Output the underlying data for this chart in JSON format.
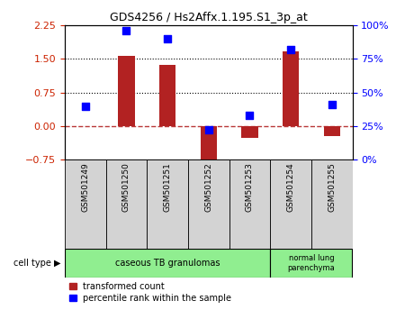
{
  "title": "GDS4256 / Hs2Affx.1.195.S1_3p_at",
  "samples": [
    "GSM501249",
    "GSM501250",
    "GSM501251",
    "GSM501252",
    "GSM501253",
    "GSM501254",
    "GSM501255"
  ],
  "transformed_count": [
    0.0,
    1.57,
    1.37,
    -0.82,
    -0.27,
    1.67,
    -0.22
  ],
  "percentile_rank": [
    40,
    96,
    90,
    22,
    33,
    82,
    41
  ],
  "left_ylim": [
    -0.75,
    2.25
  ],
  "right_ylim": [
    0,
    100
  ],
  "left_yticks": [
    -0.75,
    0,
    0.75,
    1.5,
    2.25
  ],
  "right_yticks": [
    0,
    25,
    50,
    75,
    100
  ],
  "hlines": [
    0.75,
    1.5
  ],
  "hline_zero": 0.0,
  "bar_color": "#b22222",
  "dot_color": "#0000ff",
  "bar_width": 0.4,
  "dot_size": 40,
  "tick_label_color_left": "#cc2200",
  "tick_label_color_right": "#0000ff",
  "cell_group1_label": "caseous TB granulomas",
  "cell_group1_count": 5,
  "cell_group2_label": "normal lung\nparenchyma",
  "cell_group2_count": 2,
  "cell_group_color": "#90ee90",
  "sample_box_color": "#d3d3d3",
  "cell_type_label": "cell type",
  "legend_bar_label": "transformed count",
  "legend_dot_label": "percentile rank within the sample",
  "bg_color": "#ffffff"
}
